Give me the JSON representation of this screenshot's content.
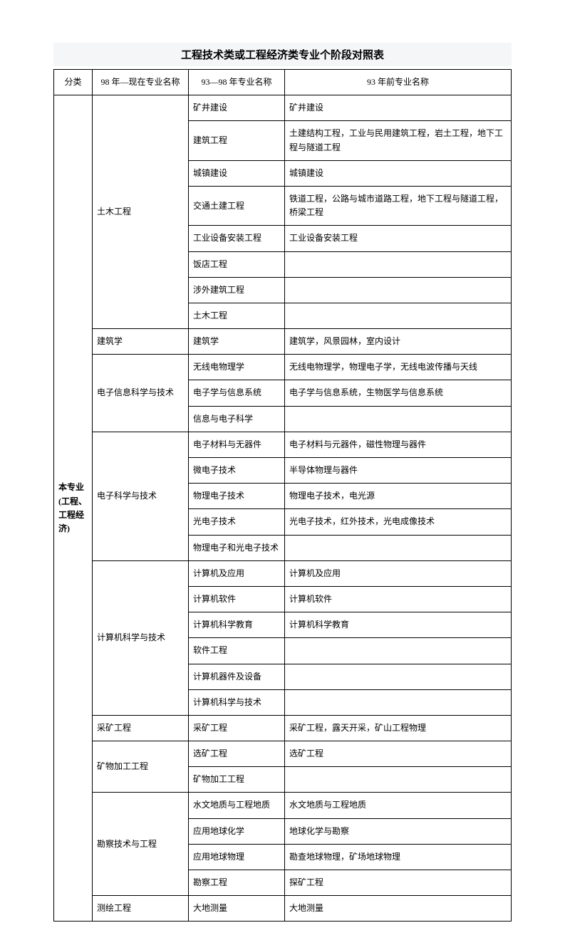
{
  "title": "工程技术类或工程经济类专业个阶段对照表",
  "headers": {
    "c1": "分类",
    "c2": "98 年—现在专业名称",
    "c3": "93—98 年专业名称",
    "c4": "93 年前专业名称"
  },
  "category": "本专业(工程、工程经济)",
  "rows": [
    {
      "c2": "土木工程",
      "c2rs": 8,
      "c3": "矿井建设",
      "c4": "矿井建设"
    },
    {
      "c3": "建筑工程",
      "c4": "土建结构工程，工业与民用建筑工程，岩土工程，地下工程与隧道工程"
    },
    {
      "c3": "城镇建设",
      "c4": "城镇建设"
    },
    {
      "c3": "交通土建工程",
      "c4": "铁道工程，公路与城市道路工程，地下工程与隧道工程，桥梁工程"
    },
    {
      "c3": "工业设备安装工程",
      "c4": "工业设备安装工程"
    },
    {
      "c3": "饭店工程",
      "c4": ""
    },
    {
      "c3": "涉外建筑工程",
      "c4": ""
    },
    {
      "c3": "土木工程",
      "c4": ""
    },
    {
      "c2": "建筑学",
      "c2rs": 1,
      "c3": "建筑学",
      "c4": "建筑学，风景园林，室内设计"
    },
    {
      "c2": "电子信息科学与技术",
      "c2rs": 3,
      "c3": "无线电物理学",
      "c4": "无线电物理学，物理电子学，无线电波传播与天线"
    },
    {
      "c3": "电子学与信息系统",
      "c4": "电子学与信息系统，生物医学与信息系统"
    },
    {
      "c3": "信息与电子科学",
      "c4": ""
    },
    {
      "c2": "电子科学与技术",
      "c2rs": 5,
      "c3": "电子材料与无器件",
      "c4": "电子材料与元器件，磁性物理与器件"
    },
    {
      "c3": "微电子技术",
      "c4": "半导体物理与器件"
    },
    {
      "c3": "物理电子技术",
      "c4": "物理电子技术，电光源"
    },
    {
      "c3": "光电子技术",
      "c4": "光电子技术，红外技术，光电成像技术"
    },
    {
      "c3": "物理电子和光电子技术",
      "c4": ""
    },
    {
      "c2": "计算机科学与技术",
      "c2rs": 6,
      "c3": "计算机及应用",
      "c4": "计算机及应用"
    },
    {
      "c3": "计算机软件",
      "c4": "计算机软件"
    },
    {
      "c3": "计算机科学教育",
      "c4": "计算机科学教育"
    },
    {
      "c3": "软件工程",
      "c4": ""
    },
    {
      "c3": "计算机器件及设备",
      "c4": ""
    },
    {
      "c3": "计算机科学与技术",
      "c4": ""
    },
    {
      "c2": "采矿工程",
      "c2rs": 1,
      "c3": "采矿工程",
      "c4": "采矿工程，露天开采，矿山工程物理"
    },
    {
      "c2": "矿物加工工程",
      "c2rs": 2,
      "c3": "选矿工程",
      "c4": "选矿工程"
    },
    {
      "c3": "矿物加工工程",
      "c4": ""
    },
    {
      "c2": "勘察技术与工程",
      "c2rs": 4,
      "c3": "水文地质与工程地质",
      "c4": "水文地质与工程地质"
    },
    {
      "c3": "应用地球化学",
      "c4": "地球化学与勘察"
    },
    {
      "c3": "应用地球物理",
      "c4": "勘查地球物理，矿场地球物理"
    },
    {
      "c3": "勘察工程",
      "c4": "探矿工程"
    },
    {
      "c2": "测绘工程",
      "c2rs": 1,
      "c3": "大地测量",
      "c4": "大地测量"
    }
  ]
}
